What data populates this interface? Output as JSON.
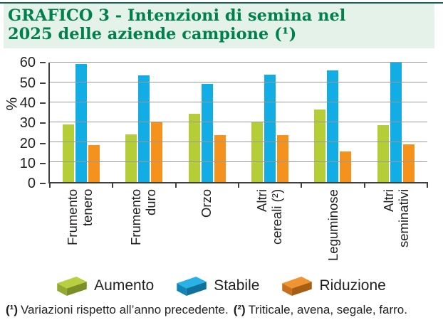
{
  "header": {
    "title": "GRAFICO 3 - Intenzioni di semina nel 2025 delle aziende campione (¹)",
    "title_color": "#00804a",
    "band_color": "#e4f2e9",
    "rule_color": "#156058"
  },
  "chart_data": {
    "type": "bar",
    "title": "GRAFICO 3 - Intenzioni di semina nel 2025 delle aziende campione (¹)",
    "xlabel": "",
    "ylabel": "%",
    "ylim": [
      0,
      60
    ],
    "yticks": [
      0,
      10,
      20,
      30,
      40,
      50,
      60
    ],
    "grid": true,
    "legend_position": "bottom",
    "categories": [
      "Frumento tenero",
      "Frumento duro",
      "Orzo",
      "Altri cereali (²)",
      "Leguminose",
      "Altri seminativi"
    ],
    "series": [
      {
        "name": "Aumento",
        "color": "#b5ce38",
        "brick": {
          "top": "#b8cf3f",
          "front": "#93a92f",
          "side": "#7a8f28"
        },
        "values": [
          29,
          24,
          34.5,
          30,
          36.5,
          28.5
        ]
      },
      {
        "name": "Stabile",
        "color": "#12ade4",
        "brick": {
          "top": "#29b2e6",
          "front": "#1285b7",
          "side": "#0f719c"
        },
        "values": [
          59.5,
          53.5,
          49.5,
          54,
          56,
          60
        ]
      },
      {
        "name": "Riduzione",
        "color": "#f5921e",
        "brick": {
          "top": "#f09433",
          "front": "#c76f1b",
          "side": "#a85d14"
        },
        "values": [
          18.5,
          30,
          23.5,
          23.5,
          15.5,
          19
        ]
      }
    ]
  },
  "footnote": {
    "ref1": "(¹)",
    "text1": "Variazioni rispetto all’anno precedente.",
    "ref2": "(²)",
    "text2": "Triticale, avena, segale, farro."
  }
}
